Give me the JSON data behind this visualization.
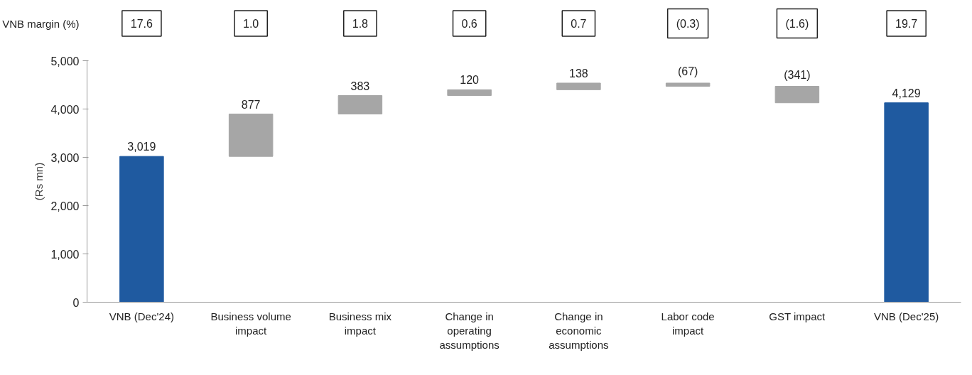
{
  "chart_data": {
    "type": "bar",
    "ylabel": "(Rs mn)",
    "categories": [
      "VNB (Dec'24)",
      "Business volume\nimpact",
      "Business mix\nimpact",
      "Change in\noperating\nassumptions",
      "Change in\neconomic\nassumptions",
      "Labor code\nimpact",
      "GST impact",
      "VNB (Dec'25)"
    ],
    "values": [
      3019,
      877,
      383,
      120,
      138,
      -67,
      -341,
      4129
    ],
    "base": [
      0,
      3019,
      3896,
      4279,
      4399,
      4537,
      4470,
      0
    ],
    "colors": [
      "#1f5aa0",
      "#a6a6a6",
      "#a6a6a6",
      "#a6a6a6",
      "#a6a6a6",
      "#a6a6a6",
      "#a6a6a6",
      "#1f5aa0"
    ],
    "value_labels": [
      "3,019",
      "877",
      "383",
      "120",
      "138",
      "(67)",
      "(341)",
      "4,129"
    ],
    "ylim": [
      0,
      5000
    ],
    "yticks": [
      0,
      {
        "value": 1000,
        "label": "1,000"
      },
      {
        "value": 2000,
        "label": "2,000"
      },
      {
        "value": 3000,
        "label": "3,000"
      },
      {
        "value": 4000,
        "label": "4,000"
      },
      {
        "value": 5000,
        "label": "5,000"
      }
    ],
    "grid": false,
    "annotations": [
      "VNB margin (%)",
      "17.6",
      "1.0",
      "1.8",
      "0.6",
      "0.7",
      "(0.3)",
      "(1.6)",
      "19.7"
    ]
  }
}
